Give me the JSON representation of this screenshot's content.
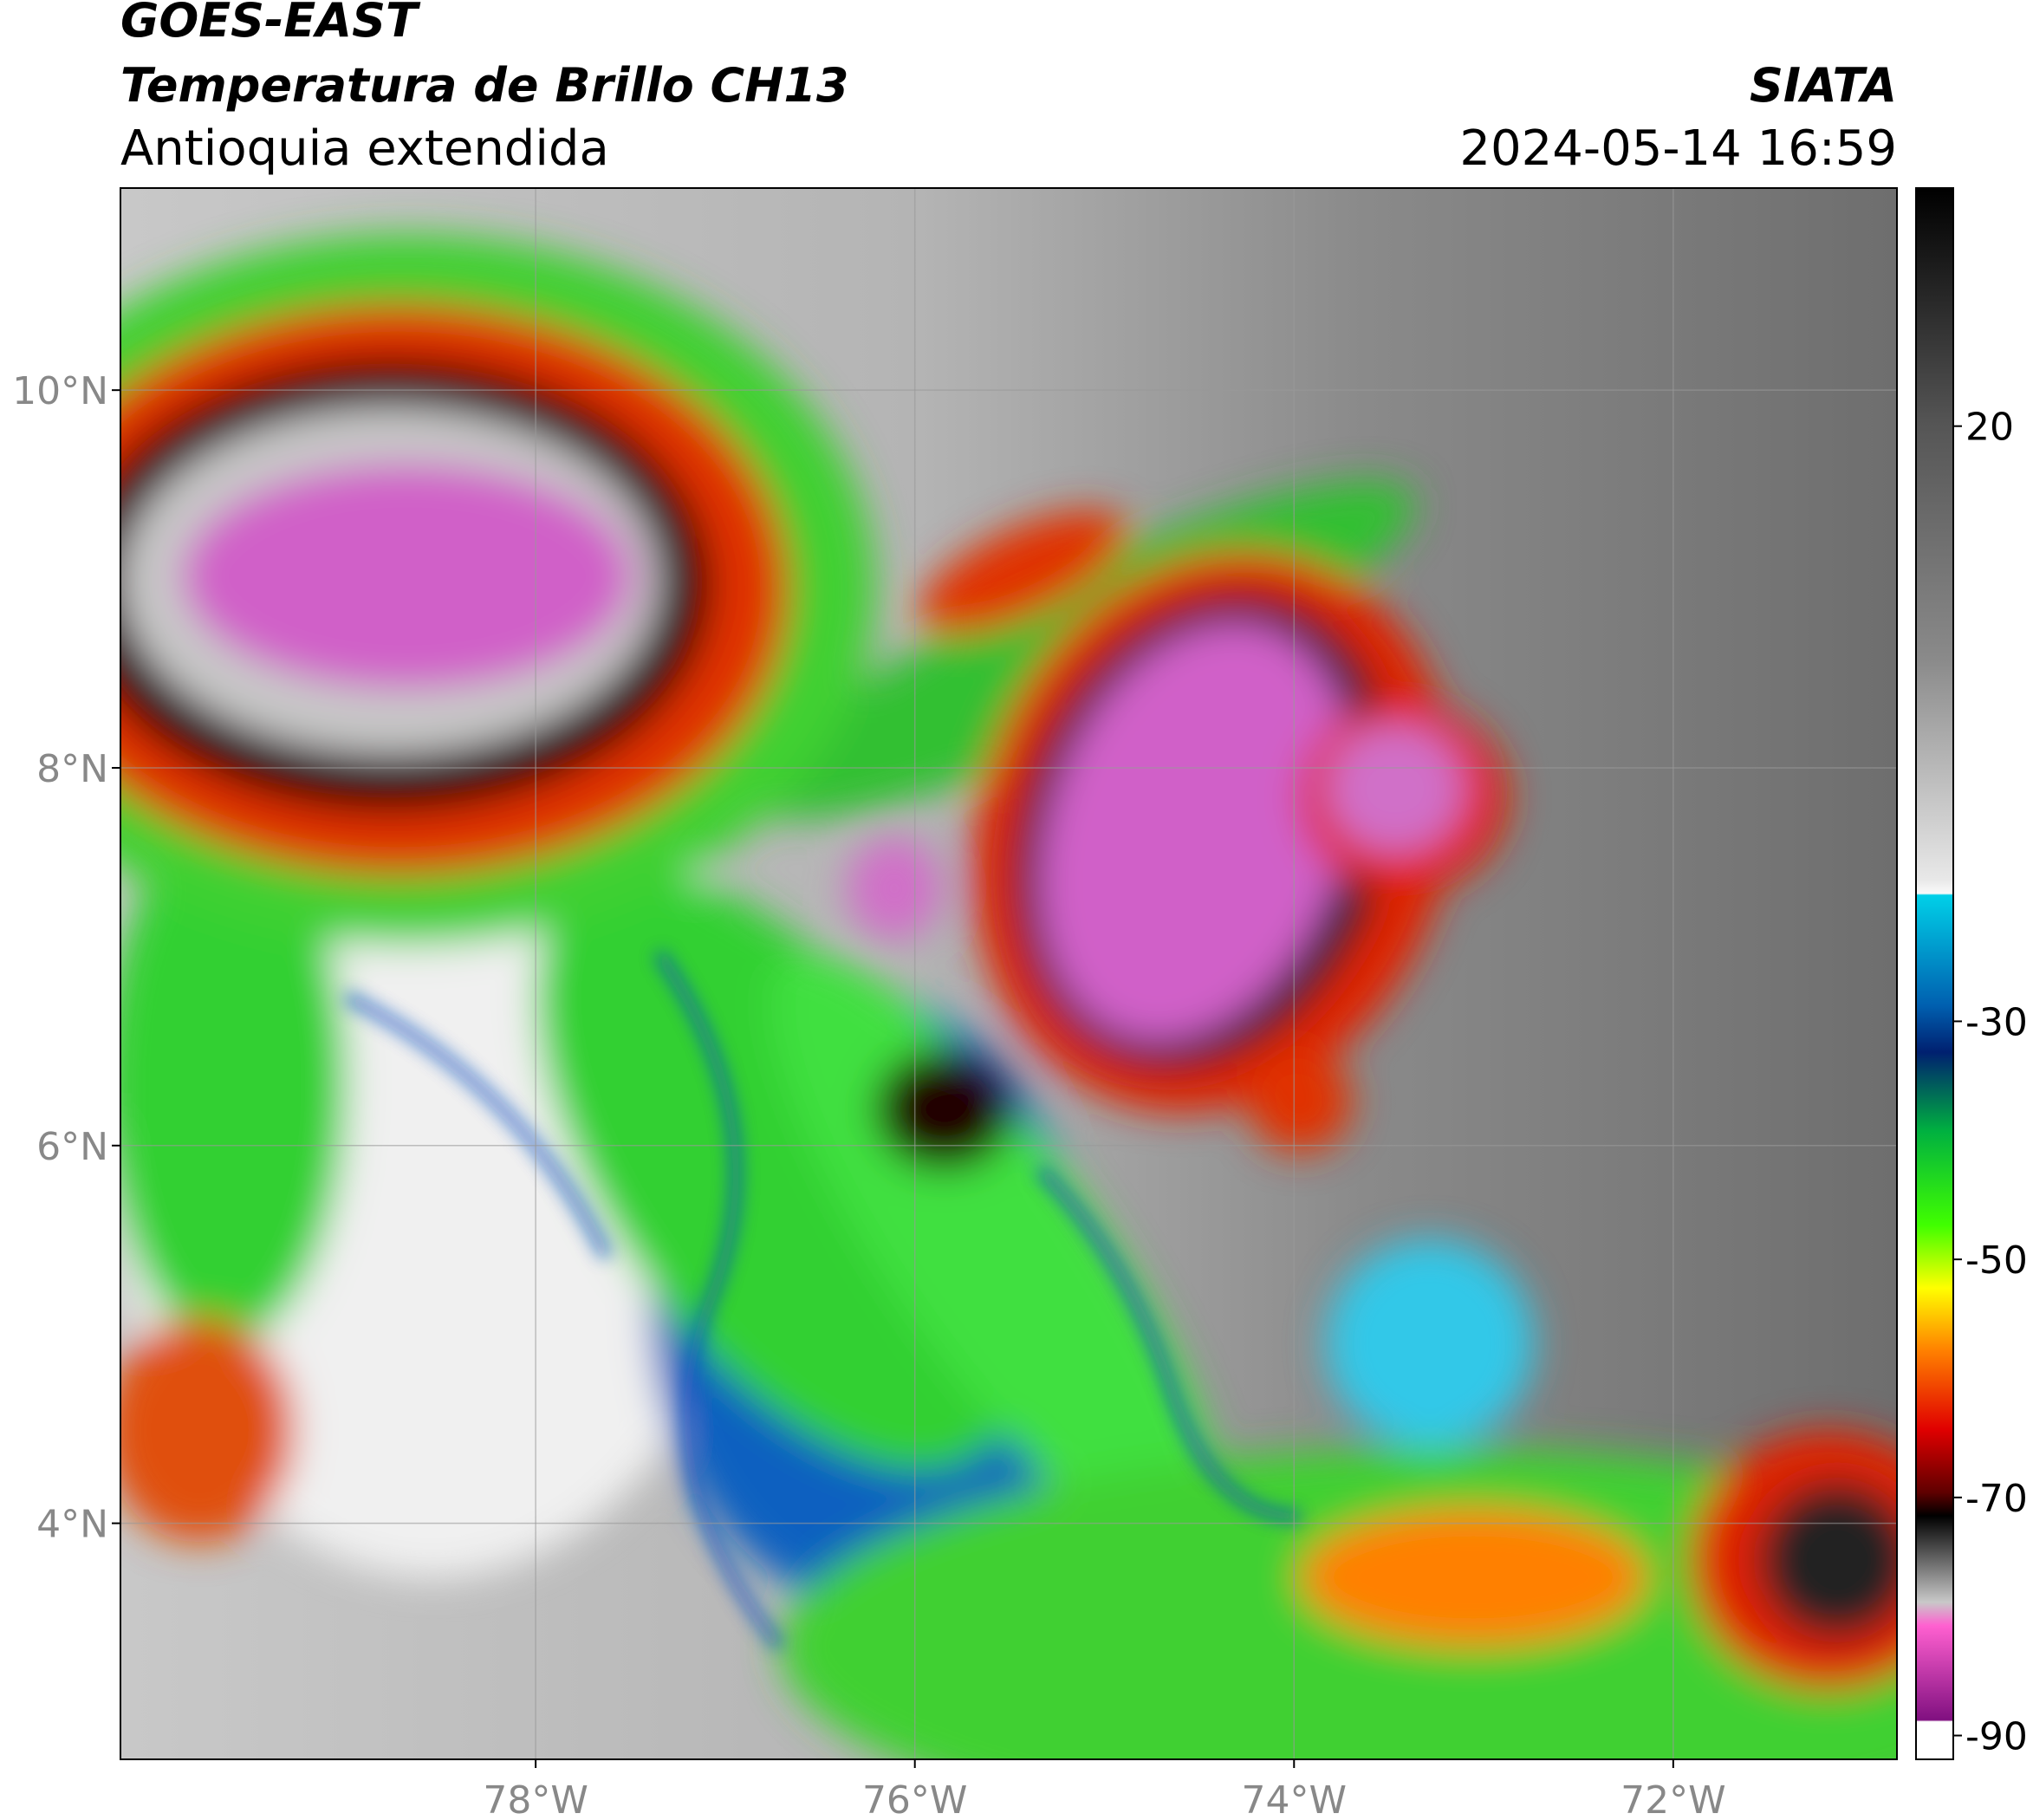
{
  "header": {
    "title": "GOES-EAST",
    "subtitle": "Temperatura de Brillo CH13",
    "region": "Antioquia extendida",
    "source": "SIATA",
    "datetime": "2024-05-14 16:59"
  },
  "map": {
    "lon_range": [
      -80.19,
      -70.82
    ],
    "lat_range": [
      2.75,
      11.07
    ],
    "xticks": [
      {
        "value": -78,
        "label": "78°W"
      },
      {
        "value": -76,
        "label": "76°W"
      },
      {
        "value": -74,
        "label": "74°W"
      },
      {
        "value": -72,
        "label": "72°W"
      }
    ],
    "yticks": [
      {
        "value": 4,
        "label": "4°N"
      },
      {
        "value": 6,
        "label": "6°N"
      },
      {
        "value": 8,
        "label": "8°N"
      },
      {
        "value": 10,
        "label": "10°N"
      }
    ],
    "grid": true
  },
  "colorbar": {
    "range": [
      40,
      -92
    ],
    "ticks": [
      20,
      -30,
      -50,
      -70,
      -90
    ]
  }
}
